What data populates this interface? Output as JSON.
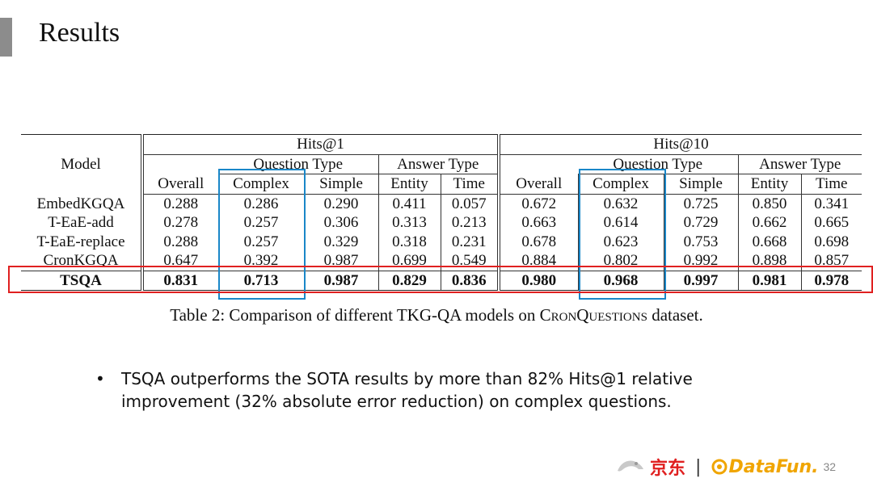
{
  "slide": {
    "title": "Results",
    "page_number": "32"
  },
  "table": {
    "model_header": "Model",
    "groups": [
      "Hits@1",
      "Hits@10"
    ],
    "subgroups": [
      "Question Type",
      "Answer Type",
      "Question Type",
      "Answer Type"
    ],
    "columns": [
      "Overall",
      "Complex",
      "Simple",
      "Entity",
      "Time",
      "Overall",
      "Complex",
      "Simple",
      "Entity",
      "Time"
    ],
    "rows": [
      {
        "model": "EmbedKGQA",
        "values": [
          "0.288",
          "0.286",
          "0.290",
          "0.411",
          "0.057",
          "0.672",
          "0.632",
          "0.725",
          "0.850",
          "0.341"
        ]
      },
      {
        "model": "T-EaE-add",
        "values": [
          "0.278",
          "0.257",
          "0.306",
          "0.313",
          "0.213",
          "0.663",
          "0.614",
          "0.729",
          "0.662",
          "0.665"
        ]
      },
      {
        "model": "T-EaE-replace",
        "values": [
          "0.288",
          "0.257",
          "0.329",
          "0.318",
          "0.231",
          "0.678",
          "0.623",
          "0.753",
          "0.668",
          "0.698"
        ]
      },
      {
        "model": "CronKGQA",
        "values": [
          "0.647",
          "0.392",
          "0.987",
          "0.699",
          "0.549",
          "0.884",
          "0.802",
          "0.992",
          "0.898",
          "0.857"
        ]
      },
      {
        "model": "TSQA",
        "values": [
          "0.831",
          "0.713",
          "0.987",
          "0.829",
          "0.836",
          "0.980",
          "0.968",
          "0.997",
          "0.981",
          "0.978"
        ]
      }
    ],
    "highlight_colors": {
      "complex_columns": "#1a87c8",
      "best_row": "#e02020"
    }
  },
  "caption": {
    "prefix": "Table 2: Comparison of different TKG-QA models on ",
    "dataset": "CronQuestions",
    "suffix": " dataset."
  },
  "bullets": [
    "TSQA outperforms the SOTA results by more than 82% Hits@1 relative improvement (32% absolute error reduction) on complex questions."
  ],
  "footer": {
    "brand_jd": "京东",
    "separator": "|",
    "brand_datafun": "DataFun."
  }
}
